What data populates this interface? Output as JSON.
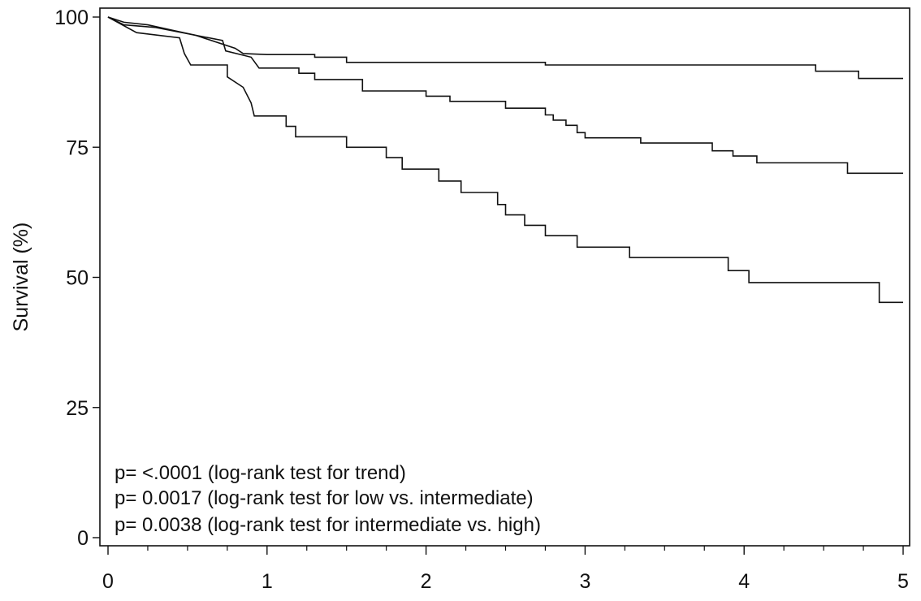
{
  "chart_data": {
    "type": "line",
    "title": "",
    "xlabel": "",
    "ylabel": "Survival (%)",
    "xlim": [
      0,
      5
    ],
    "ylim": [
      0,
      100
    ],
    "x_ticks": [
      "0",
      "1",
      "2",
      "3",
      "4",
      "5"
    ],
    "y_ticks": [
      "0",
      "25",
      "50",
      "75",
      "100"
    ],
    "grid": false,
    "legend": "none",
    "line_color": "#111111",
    "annotations": [
      "p= <.0001 (log-rank test for trend)",
      "p= 0.0017 (log-rank test for low vs. intermediate)",
      "p= 0.0038 (log-rank test for intermediate vs. high)"
    ],
    "series": [
      {
        "points": [
          [
            0,
            100
          ],
          [
            0.1,
            99
          ],
          [
            0.25,
            98.5
          ],
          [
            0.4,
            97.5
          ],
          [
            0.55,
            96.5
          ],
          [
            0.8,
            94
          ],
          [
            0.85,
            93
          ],
          [
            1.0,
            92.8
          ],
          [
            1.3,
            92.8
          ],
          [
            1.3,
            92.3
          ],
          [
            1.5,
            92.3
          ],
          [
            1.5,
            91.3
          ],
          [
            2.75,
            91.3
          ],
          [
            2.75,
            90.8
          ],
          [
            4.45,
            90.8
          ],
          [
            4.45,
            89.6
          ],
          [
            4.72,
            89.6
          ],
          [
            4.72,
            88.2
          ],
          [
            5.0,
            88.2
          ]
        ]
      },
      {
        "points": [
          [
            0,
            100
          ],
          [
            0.1,
            98.5
          ],
          [
            0.3,
            98
          ],
          [
            0.5,
            96.8
          ],
          [
            0.72,
            95.5
          ],
          [
            0.74,
            93.5
          ],
          [
            0.9,
            92.3
          ],
          [
            0.95,
            90.2
          ],
          [
            1.2,
            90.2
          ],
          [
            1.2,
            89.2
          ],
          [
            1.3,
            89.2
          ],
          [
            1.3,
            88
          ],
          [
            1.6,
            88
          ],
          [
            1.6,
            85.8
          ],
          [
            2.0,
            85.8
          ],
          [
            2.0,
            84.8
          ],
          [
            2.15,
            84.8
          ],
          [
            2.15,
            83.8
          ],
          [
            2.5,
            83.8
          ],
          [
            2.5,
            82.5
          ],
          [
            2.75,
            82.5
          ],
          [
            2.75,
            81.2
          ],
          [
            2.8,
            81.2
          ],
          [
            2.8,
            80.2
          ],
          [
            2.88,
            80.2
          ],
          [
            2.88,
            79.2
          ],
          [
            2.95,
            79.2
          ],
          [
            2.95,
            77.8
          ],
          [
            3.0,
            77.8
          ],
          [
            3.0,
            76.8
          ],
          [
            3.35,
            76.8
          ],
          [
            3.35,
            75.8
          ],
          [
            3.8,
            75.8
          ],
          [
            3.8,
            74.3
          ],
          [
            3.93,
            74.3
          ],
          [
            3.93,
            73.3
          ],
          [
            4.08,
            73.3
          ],
          [
            4.08,
            72
          ],
          [
            4.65,
            72
          ],
          [
            4.65,
            70
          ],
          [
            5.0,
            70
          ]
        ]
      },
      {
        "points": [
          [
            0,
            100
          ],
          [
            0.18,
            97
          ],
          [
            0.45,
            96
          ],
          [
            0.48,
            93
          ],
          [
            0.52,
            90.8
          ],
          [
            0.75,
            90.8
          ],
          [
            0.75,
            88.5
          ],
          [
            0.85,
            86.5
          ],
          [
            0.9,
            83.5
          ],
          [
            0.92,
            81
          ],
          [
            1.12,
            81
          ],
          [
            1.12,
            79
          ],
          [
            1.18,
            79
          ],
          [
            1.18,
            77
          ],
          [
            1.5,
            77
          ],
          [
            1.5,
            75
          ],
          [
            1.75,
            75
          ],
          [
            1.75,
            73
          ],
          [
            1.85,
            73
          ],
          [
            1.85,
            70.8
          ],
          [
            2.08,
            70.8
          ],
          [
            2.08,
            68.5
          ],
          [
            2.22,
            68.5
          ],
          [
            2.22,
            66.3
          ],
          [
            2.45,
            66.3
          ],
          [
            2.45,
            64
          ],
          [
            2.5,
            64
          ],
          [
            2.5,
            62
          ],
          [
            2.62,
            62
          ],
          [
            2.62,
            60
          ],
          [
            2.75,
            60
          ],
          [
            2.75,
            58
          ],
          [
            2.95,
            58
          ],
          [
            2.95,
            55.8
          ],
          [
            3.28,
            55.8
          ],
          [
            3.28,
            53.8
          ],
          [
            3.9,
            53.8
          ],
          [
            3.9,
            51.3
          ],
          [
            4.03,
            51.3
          ],
          [
            4.03,
            49
          ],
          [
            4.85,
            49
          ],
          [
            4.85,
            45.2
          ],
          [
            5.0,
            45.2
          ]
        ]
      }
    ]
  }
}
